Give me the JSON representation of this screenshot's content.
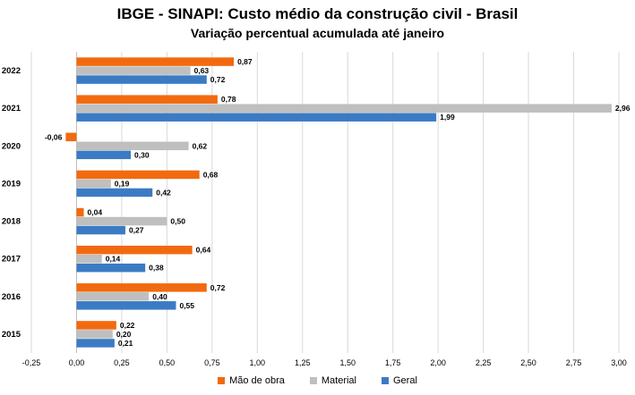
{
  "chart_data": {
    "type": "bar",
    "orientation": "horizontal",
    "title": "IBGE - SINAPI: Custo médio da construção civil - Brasil",
    "subtitle": "Variação percentual acumulada até janeiro",
    "categories": [
      "2022",
      "2021",
      "2020",
      "2019",
      "2018",
      "2017",
      "2016",
      "2015"
    ],
    "series": [
      {
        "name": "Mão de obra",
        "color": "#f26a0f",
        "values": [
          0.87,
          0.78,
          -0.06,
          0.68,
          0.04,
          0.64,
          0.72,
          0.22
        ],
        "labels": [
          "0,87",
          "0,78",
          "-0,06",
          "0,68",
          "0,04",
          "0,64",
          "0,72",
          "0,22"
        ]
      },
      {
        "name": "Material",
        "color": "#bfbfbf",
        "values": [
          0.63,
          2.96,
          0.62,
          0.19,
          0.5,
          0.14,
          0.4,
          0.2
        ],
        "labels": [
          "0,63",
          "2,96",
          "0,62",
          "0,19",
          "0,50",
          "0,14",
          "0,40",
          "0,20"
        ]
      },
      {
        "name": "Geral",
        "color": "#3b7bc4",
        "values": [
          0.72,
          1.99,
          0.3,
          0.42,
          0.27,
          0.38,
          0.55,
          0.21
        ],
        "labels": [
          "0,72",
          "1,99",
          "0,30",
          "0,42",
          "0,27",
          "0,38",
          "0,55",
          "0,21"
        ]
      }
    ],
    "xlim": [
      -0.25,
      3.0
    ],
    "x_ticks": [
      -0.25,
      0,
      0.25,
      0.5,
      0.75,
      1.0,
      1.25,
      1.5,
      1.75,
      2.0,
      2.25,
      2.5,
      2.75,
      3.0
    ],
    "x_tick_labels": [
      "-0,25",
      "0,00",
      "0,25",
      "0,50",
      "0,75",
      "1,00",
      "1,25",
      "1,50",
      "1,75",
      "2,00",
      "2,25",
      "2,50",
      "2,75",
      "3,00"
    ],
    "grid": "vertical",
    "legend_position": "bottom"
  }
}
